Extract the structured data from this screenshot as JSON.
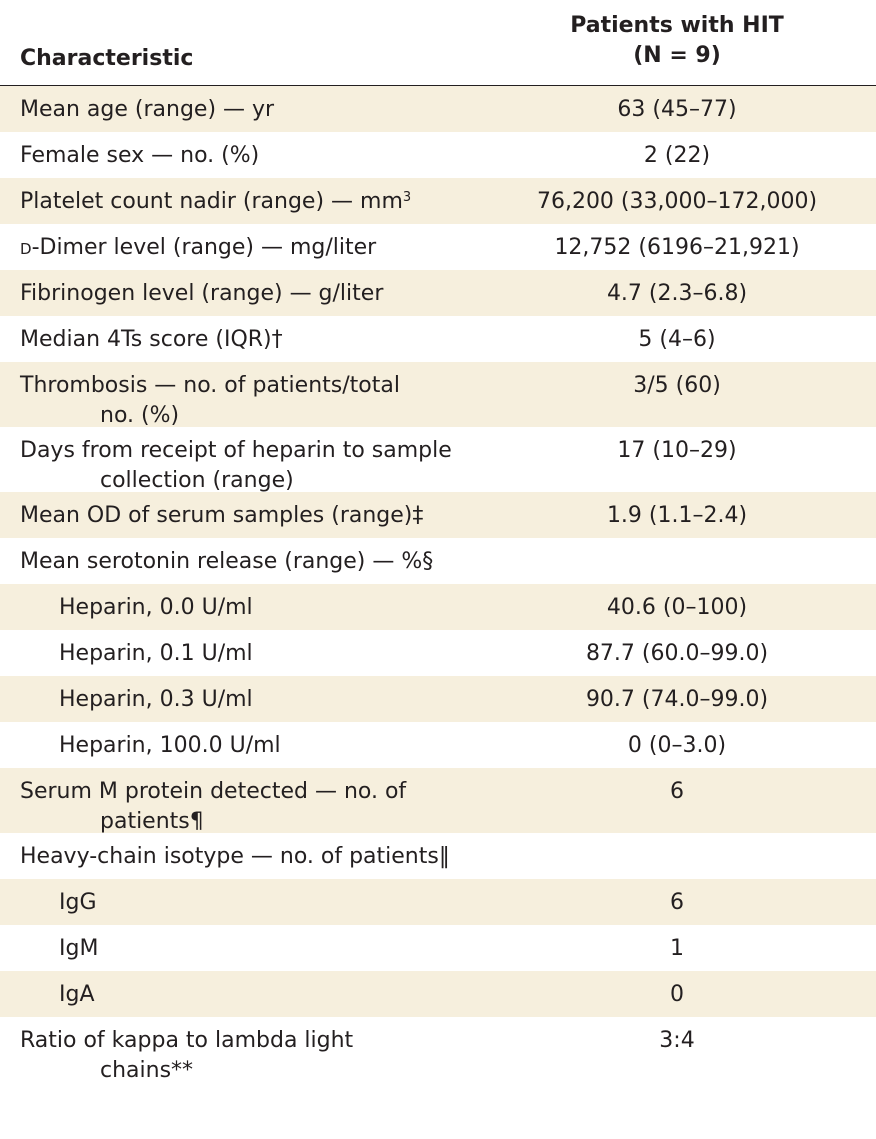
{
  "header": {
    "characteristic": "Characteristic",
    "group_line1": "Patients with HIT",
    "group_line2": "(N = 9)"
  },
  "rows": [
    {
      "label": "Mean age (range) — yr",
      "value": "63 (45–77)"
    },
    {
      "label": "Female sex — no. (%)",
      "value": "2 (22)"
    },
    {
      "label": "Platelet count nadir (range) — mm",
      "sup": "3",
      "value": "76,200 (33,000–172,000)"
    },
    {
      "label_prefix": "D",
      "label": "-Dimer level (range) — mg/liter",
      "value": "12,752 (6196–21,921)"
    },
    {
      "label": "Fibrinogen level (range) — g/liter",
      "value": "4.7 (2.3–6.8)"
    },
    {
      "label": "Median 4Ts score (IQR)†",
      "value": "5 (4–6)"
    },
    {
      "label": "Thrombosis — no. of patients/total",
      "label2": "no. (%)",
      "value": "3/5 (60)"
    },
    {
      "label": "Days from receipt of heparin to sample",
      "label2": "collection (range)",
      "value": "17 (10–29)"
    },
    {
      "label": "Mean OD of serum samples (range)‡",
      "value": "1.9 (1.1–2.4)"
    },
    {
      "label": "Mean serotonin release (range) — %§",
      "value": ""
    },
    {
      "label": "Heparin, 0.0 U/ml",
      "value": "40.6 (0–100)"
    },
    {
      "label": "Heparin, 0.1 U/ml",
      "value": "87.7 (60.0–99.0)"
    },
    {
      "label": "Heparin, 0.3 U/ml",
      "value": "90.7 (74.0–99.0)"
    },
    {
      "label": "Heparin, 100.0 U/ml",
      "value": "0 (0–3.0)"
    },
    {
      "label": "Serum M protein detected — no. of",
      "label2": "patients¶",
      "value": "6"
    },
    {
      "label": "Heavy-chain isotype — no. of patients‖",
      "value": ""
    },
    {
      "label": "IgG",
      "value": "6"
    },
    {
      "label": "IgM",
      "value": "1"
    },
    {
      "label": "IgA",
      "value": "0"
    },
    {
      "label": "Ratio of kappa to lambda light",
      "label2": "chains**",
      "value": "3:4"
    }
  ]
}
